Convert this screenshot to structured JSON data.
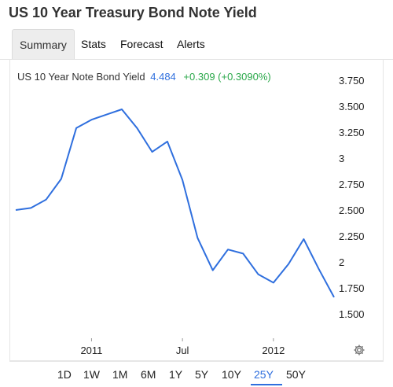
{
  "title": "US 10 Year Treasury Bond Note Yield",
  "tabs": [
    {
      "label": "Summary",
      "active": true
    },
    {
      "label": "Stats",
      "active": false
    },
    {
      "label": "Forecast",
      "active": false
    },
    {
      "label": "Alerts",
      "active": false
    }
  ],
  "legend": {
    "name": "US 10 Year Note Bond Yield",
    "value": "4.484",
    "change": "+0.309 (+0.3090%)"
  },
  "colors": {
    "line": "#2f6fde",
    "accent": "#2f6fde",
    "positive": "#2aa84a"
  },
  "chart_data": {
    "type": "line",
    "x_labels": [
      "2011",
      "Jul",
      "2012"
    ],
    "y_ticks": [
      "3.750",
      "3.500",
      "3.250",
      "3",
      "2.750",
      "2.500",
      "2.250",
      "2",
      "1.750",
      "1.500"
    ],
    "ylim": [
      1.25,
      3.85
    ],
    "grid": false,
    "series": [
      {
        "x": [
          "2010-08",
          "2010-09",
          "2010-10",
          "2010-11",
          "2010-12",
          "2011-01",
          "2011-02",
          "2011-03",
          "2011-04",
          "2011-05",
          "2011-06",
          "2011-07",
          "2011-08",
          "2011-09",
          "2011-10",
          "2011-11",
          "2011-12",
          "2012-01",
          "2012-02",
          "2012-03",
          "2012-04",
          "2012-05"
        ],
        "values": [
          2.5,
          2.52,
          2.6,
          2.8,
          3.29,
          3.37,
          3.42,
          3.47,
          3.29,
          3.06,
          3.16,
          2.79,
          2.23,
          1.92,
          2.12,
          2.08,
          1.88,
          1.8,
          1.98,
          2.22,
          1.93,
          1.66
        ]
      }
    ]
  },
  "range_buttons": [
    {
      "label": "1D",
      "active": false
    },
    {
      "label": "1W",
      "active": false
    },
    {
      "label": "1M",
      "active": false
    },
    {
      "label": "6M",
      "active": false
    },
    {
      "label": "1Y",
      "active": false
    },
    {
      "label": "5Y",
      "active": false
    },
    {
      "label": "10Y",
      "active": false
    },
    {
      "label": "25Y",
      "active": true
    },
    {
      "label": "50Y",
      "active": false
    }
  ],
  "settings_icon": "gear-icon"
}
